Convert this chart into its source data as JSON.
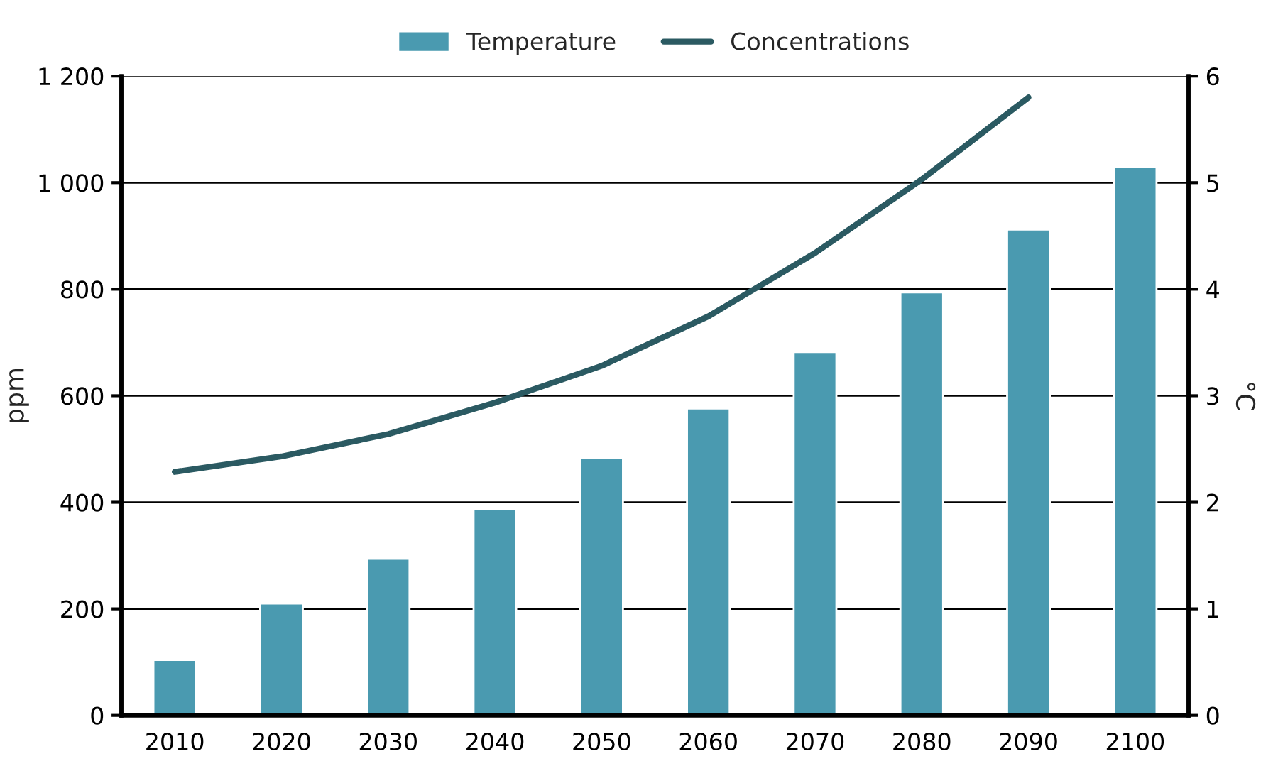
{
  "chart_data": {
    "type": "bar",
    "ylabel": "ppm",
    "y2label": "°C",
    "categories": [
      "2010",
      "2020",
      "2030",
      "2040",
      "2050",
      "2060",
      "2070",
      "2080",
      "2090",
      "2100"
    ],
    "series": [
      {
        "name": "Temperature",
        "axis": "y2",
        "color": "#4a9ab0",
        "values": [
          0.52,
          1.05,
          1.47,
          1.94,
          2.42,
          2.88,
          3.41,
          3.97,
          4.56,
          5.15
        ]
      },
      {
        "name": "Concentrations",
        "type": "line",
        "axis": "y",
        "color": "#2b5a62",
        "values": [
          457,
          486,
          528,
          587,
          656,
          749,
          868,
          1006,
          1160,
          null
        ]
      }
    ],
    "ylim": [
      0,
      1200
    ],
    "yticks": [
      0,
      200,
      400,
      600,
      800,
      {
        "value": 1000,
        "label": "1 000"
      },
      {
        "value": 1200,
        "label": "1 200"
      }
    ],
    "y2lim": [
      0,
      6
    ],
    "y2ticks": [
      0,
      1,
      2,
      3,
      4,
      5,
      6
    ],
    "grid": "y",
    "legend": "top"
  }
}
